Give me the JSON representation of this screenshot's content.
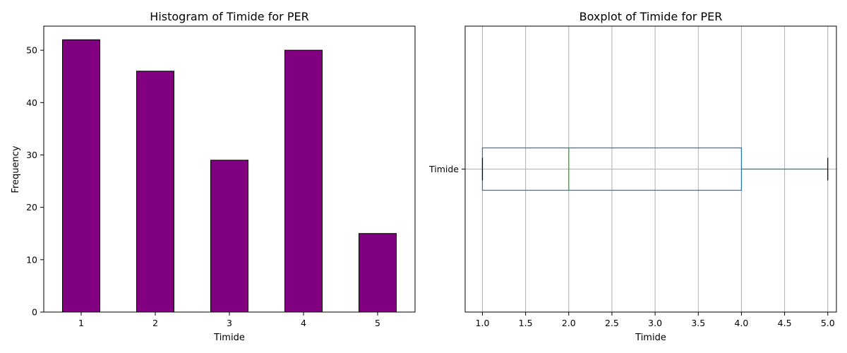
{
  "chart_data": [
    {
      "type": "bar",
      "title": "Histogram of Timide for PER",
      "xlabel": "Timide",
      "ylabel": "Frequency",
      "categories": [
        "1",
        "2",
        "3",
        "4",
        "5"
      ],
      "values": [
        52,
        46,
        29,
        50,
        15
      ],
      "ylim": [
        0,
        54.6
      ],
      "yticks": [
        0,
        10,
        20,
        30,
        40,
        50
      ],
      "bar_color": "#800080",
      "edge_color": "#000000",
      "grid": false
    },
    {
      "type": "boxplot",
      "title": "Boxplot of Timide for PER",
      "xlabel": "Timide",
      "category_label": "Timide",
      "xlim": [
        0.8,
        5.1
      ],
      "xticks": [
        1.0,
        1.5,
        2.0,
        2.5,
        3.0,
        3.5,
        4.0,
        4.5,
        5.0
      ],
      "box": {
        "whisker_low": 1.0,
        "q1": 1.0,
        "median": 2.0,
        "q3": 4.0,
        "whisker_high": 5.0
      },
      "box_color": "#1f77b4",
      "median_color": "#2ca02c",
      "grid": true
    }
  ]
}
